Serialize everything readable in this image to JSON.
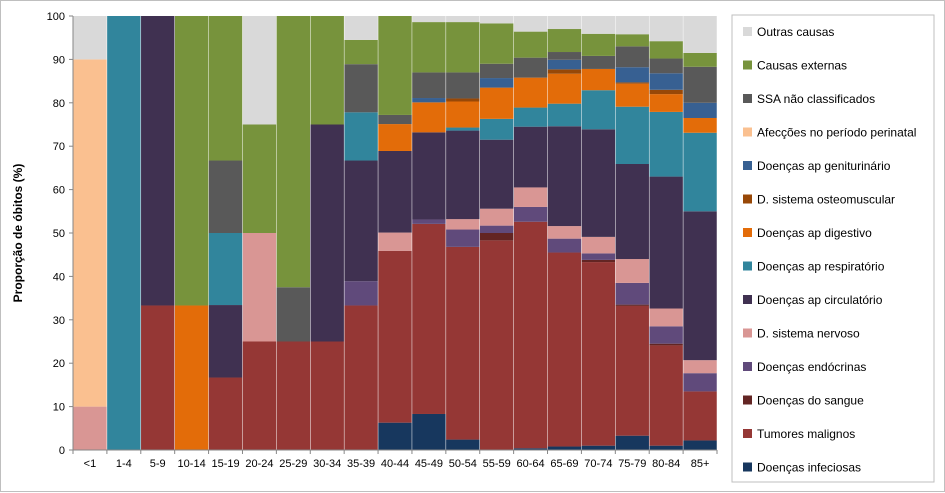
{
  "chart_data": {
    "type": "bar",
    "stacked": true,
    "percent": true,
    "ylabel": "Proporção de óbitos (%)",
    "ylim": [
      0,
      100
    ],
    "yticks": [
      0,
      10,
      20,
      30,
      40,
      50,
      60,
      70,
      80,
      90,
      100
    ],
    "grid": false,
    "legend_position": "right",
    "categories": [
      "<1",
      "1-4",
      "5-9",
      "10-14",
      "15-19",
      "20-24",
      "25-29",
      "30-34",
      "35-39",
      "40-44",
      "45-49",
      "50-54",
      "55-59",
      "60-64",
      "65-69",
      "70-74",
      "75-79",
      "80-84",
      "85+"
    ],
    "series": [
      {
        "name": "Doenças infeciosas",
        "color": "#17375e",
        "values": [
          0,
          0,
          0,
          0,
          0,
          0,
          0,
          0,
          0,
          6.3,
          8.3,
          2.4,
          0,
          0.4,
          0.8,
          1,
          3.3,
          1,
          2.2
        ]
      },
      {
        "name": "Tumores malignos",
        "color": "#953735",
        "values": [
          0,
          0,
          33.3,
          0,
          16.7,
          25,
          25,
          25,
          33.3,
          39.6,
          43.8,
          44.4,
          48.3,
          52.2,
          44.7,
          42.3,
          29.9,
          23.1,
          11.3
        ]
      },
      {
        "name": "Doenças do sangue",
        "color": "#632523",
        "values": [
          0,
          0,
          0,
          0,
          0,
          0,
          0,
          0,
          0,
          0,
          0,
          0,
          1.7,
          0,
          0,
          0.5,
          0.3,
          0.4,
          0
        ]
      },
      {
        "name": "Doenças endócrinas",
        "color": "#604a7b",
        "values": [
          0,
          0,
          0,
          0,
          0,
          0,
          0,
          0,
          5.6,
          0,
          1,
          4,
          1.7,
          3.4,
          3.2,
          1.5,
          5,
          4,
          4.2
        ]
      },
      {
        "name": "D. sistema nervoso",
        "color": "#d99694",
        "values": [
          10,
          0,
          0,
          0,
          0,
          25,
          0,
          0,
          0,
          4.2,
          0,
          2.4,
          3.9,
          4.5,
          2.9,
          3.8,
          5.5,
          4.1,
          3
        ]
      },
      {
        "name": "Doenças ap circulatório",
        "color": "#403151",
        "values": [
          0,
          0,
          66.7,
          0,
          16.7,
          0,
          0,
          50,
          27.8,
          18.8,
          20.1,
          20.4,
          15.9,
          14,
          23,
          24.8,
          21.9,
          30.4,
          34.3
        ]
      },
      {
        "name": "Doenças ap respiratório",
        "color": "#31859c",
        "values": [
          0,
          100,
          0,
          0,
          16.6,
          0,
          0,
          0,
          11.1,
          0,
          0,
          0.7,
          4.8,
          4.4,
          5.2,
          9,
          13.2,
          14.9,
          18.1
        ]
      },
      {
        "name": "Doenças ap digestivo",
        "color": "#e36c09",
        "values": [
          0,
          0,
          0,
          33.3,
          0,
          0,
          0,
          0,
          0,
          6.2,
          6.9,
          6,
          7.2,
          6.9,
          6.9,
          4.9,
          5.3,
          4.1,
          3.4
        ]
      },
      {
        "name": "D. sistema osteomuscular",
        "color": "#984807",
        "values": [
          0,
          0,
          0,
          0,
          0,
          0,
          0,
          0,
          0,
          0,
          0,
          0.7,
          0,
          0,
          1,
          0,
          0.3,
          1,
          0
        ]
      },
      {
        "name": "Doenças ap geniturinário",
        "color": "#376092",
        "values": [
          0,
          0,
          0,
          0,
          0,
          0,
          0,
          0,
          0,
          0,
          1,
          0,
          2.2,
          0,
          2.2,
          0,
          3.5,
          3.8,
          3.5
        ]
      },
      {
        "name": "Afecções no período perinatal",
        "color": "#fac090",
        "values": [
          80,
          0,
          0,
          0,
          0,
          0,
          0,
          0,
          0,
          0,
          0,
          0,
          0,
          0,
          0,
          0,
          0,
          0,
          0
        ]
      },
      {
        "name": "SSA não classificados",
        "color": "#595959",
        "values": [
          0,
          0,
          0,
          0,
          16.7,
          0,
          12.5,
          0,
          11.1,
          2.1,
          5.9,
          6,
          3.3,
          4.6,
          1.8,
          3,
          4.8,
          3.4,
          8.3
        ]
      },
      {
        "name": "Causas externas",
        "color": "#77933c",
        "values": [
          0,
          0,
          0,
          66.7,
          33.3,
          25,
          62.5,
          25,
          5.6,
          22.8,
          11.6,
          11.6,
          9.3,
          6,
          5.3,
          5.1,
          2.8,
          4,
          3.2
        ]
      },
      {
        "name": "Outras causas",
        "color": "#d9d9d9",
        "values": [
          10,
          0,
          0,
          0,
          0,
          25,
          0,
          0,
          5.5,
          0,
          1.4,
          1.4,
          1.7,
          3.6,
          3,
          4.1,
          4.2,
          5.8,
          8.5
        ]
      }
    ]
  }
}
